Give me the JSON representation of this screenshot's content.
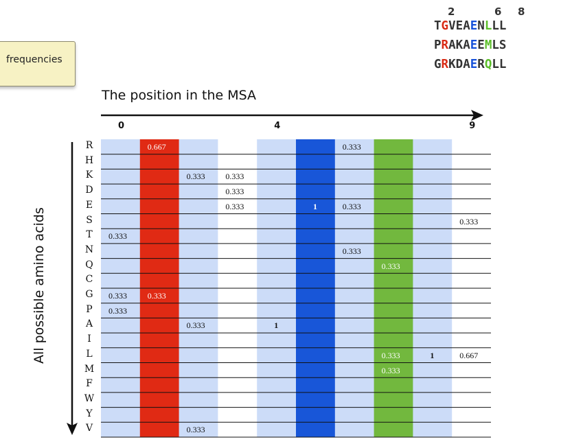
{
  "badge_label": "frequencies",
  "sequences": {
    "position_numbers": [
      "2",
      "6",
      "8"
    ],
    "rows": [
      [
        {
          "c": "T",
          "col": ""
        },
        {
          "c": "G",
          "col": "#d92a14"
        },
        {
          "c": "V",
          "col": ""
        },
        {
          "c": "E",
          "col": ""
        },
        {
          "c": "A",
          "col": ""
        },
        {
          "c": "E",
          "col": "#1550d9"
        },
        {
          "c": "N",
          "col": ""
        },
        {
          "c": "L",
          "col": "#5cbf2a"
        },
        {
          "c": "L",
          "col": ""
        },
        {
          "c": "L",
          "col": ""
        }
      ],
      [
        {
          "c": "P",
          "col": ""
        },
        {
          "c": "R",
          "col": "#d92a14"
        },
        {
          "c": "A",
          "col": ""
        },
        {
          "c": "K",
          "col": ""
        },
        {
          "c": "A",
          "col": ""
        },
        {
          "c": "E",
          "col": "#1550d9"
        },
        {
          "c": "E",
          "col": ""
        },
        {
          "c": "M",
          "col": "#5cbf2a"
        },
        {
          "c": "L",
          "col": ""
        },
        {
          "c": "S",
          "col": ""
        }
      ],
      [
        {
          "c": "G",
          "col": ""
        },
        {
          "c": "R",
          "col": "#d92a14"
        },
        {
          "c": "K",
          "col": ""
        },
        {
          "c": "D",
          "col": ""
        },
        {
          "c": "A",
          "col": ""
        },
        {
          "c": "E",
          "col": "#1550d9"
        },
        {
          "c": "R",
          "col": ""
        },
        {
          "c": "Q",
          "col": "#5cbf2a"
        },
        {
          "c": "L",
          "col": ""
        },
        {
          "c": "L",
          "col": ""
        }
      ]
    ]
  },
  "x_axis_title": "The position in the MSA",
  "y_axis_title": "All possible amino acids",
  "x_ticks": [
    {
      "label": "0",
      "column": 0
    },
    {
      "label": "4",
      "column": 4
    },
    {
      "label": "9",
      "column": 9
    }
  ],
  "amino_acids": [
    "R",
    "H",
    "K",
    "D",
    "E",
    "S",
    "T",
    "N",
    "Q",
    "C",
    "G",
    "P",
    "A",
    "I",
    "L",
    "M",
    "F",
    "W",
    "Y",
    "V"
  ],
  "column_colors": [
    "#ccdcf8",
    "#e02a14",
    "#ccdcf8",
    "#ffffff",
    "#ccdcf8",
    "#1856d8",
    "#ccdcf8",
    "#72b83e",
    "#ccdcf8",
    "#ffffff"
  ],
  "cells": [
    {
      "row": "R",
      "col": 1,
      "value": "0.667"
    },
    {
      "row": "R",
      "col": 6,
      "value": "0.333"
    },
    {
      "row": "K",
      "col": 2,
      "value": "0.333"
    },
    {
      "row": "K",
      "col": 3,
      "value": "0.333"
    },
    {
      "row": "D",
      "col": 3,
      "value": "0.333"
    },
    {
      "row": "E",
      "col": 3,
      "value": "0.333"
    },
    {
      "row": "E",
      "col": 5,
      "value": "1"
    },
    {
      "row": "E",
      "col": 6,
      "value": "0.333"
    },
    {
      "row": "S",
      "col": 9,
      "value": "0.333"
    },
    {
      "row": "T",
      "col": 0,
      "value": "0.333"
    },
    {
      "row": "N",
      "col": 6,
      "value": "0.333"
    },
    {
      "row": "Q",
      "col": 7,
      "value": "0.333"
    },
    {
      "row": "G",
      "col": 0,
      "value": "0.333"
    },
    {
      "row": "G",
      "col": 1,
      "value": "0.333"
    },
    {
      "row": "P",
      "col": 0,
      "value": "0.333"
    },
    {
      "row": "A",
      "col": 2,
      "value": "0.333"
    },
    {
      "row": "A",
      "col": 4,
      "value": "1"
    },
    {
      "row": "L",
      "col": 7,
      "value": "0.333"
    },
    {
      "row": "L",
      "col": 8,
      "value": "1"
    },
    {
      "row": "L",
      "col": 9,
      "value": "0.667"
    },
    {
      "row": "M",
      "col": 7,
      "value": "0.333"
    },
    {
      "row": "V",
      "col": 2,
      "value": "0.333"
    }
  ]
}
